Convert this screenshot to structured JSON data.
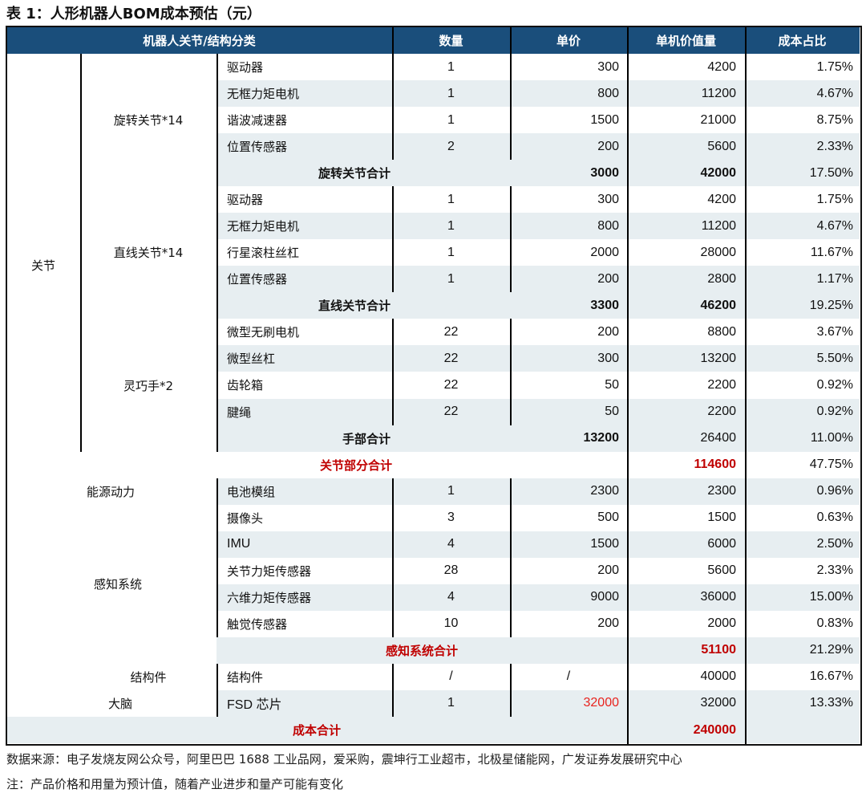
{
  "title": "表 1：人形机器人BOM成本预估（元）",
  "header": {
    "category": "机器人关节/结构分类",
    "qty": "数量",
    "price": "单价",
    "total": "单机价值量",
    "pct": "成本占比"
  },
  "groups": {
    "level1": [
      {
        "label": "关节"
      }
    ],
    "level2": [
      {
        "label": "旋转关节*14"
      },
      {
        "label": "直线关节*14"
      },
      {
        "label": "灵巧手*2"
      },
      {
        "label": "能源动力"
      },
      {
        "label": "感知系统"
      },
      {
        "label": "结构件"
      },
      {
        "label": "大脑"
      }
    ]
  },
  "rows": [
    {
      "type": "item",
      "item": "驱动器",
      "qty": "1",
      "price": "300",
      "total": "4200",
      "pct": "1.75%"
    },
    {
      "type": "item",
      "item": "无框力矩电机",
      "qty": "1",
      "price": "800",
      "total": "11200",
      "pct": "4.67%"
    },
    {
      "type": "item",
      "item": "谐波减速器",
      "qty": "1",
      "price": "1500",
      "total": "21000",
      "pct": "8.75%"
    },
    {
      "type": "item",
      "item": "位置传感器",
      "qty": "2",
      "price": "200",
      "total": "5600",
      "pct": "2.33%"
    },
    {
      "type": "subtotal",
      "item": "旋转关节合计",
      "price": "3000",
      "total": "42000",
      "pct": "17.50%"
    },
    {
      "type": "item",
      "item": "驱动器",
      "qty": "1",
      "price": "300",
      "total": "4200",
      "pct": "1.75%"
    },
    {
      "type": "item",
      "item": "无框力矩电机",
      "qty": "1",
      "price": "800",
      "total": "11200",
      "pct": "4.67%"
    },
    {
      "type": "item",
      "item": "行星滚柱丝杠",
      "qty": "1",
      "price": "2000",
      "total": "28000",
      "pct": "11.67%"
    },
    {
      "type": "item",
      "item": "位置传感器",
      "qty": "1",
      "price": "200",
      "total": "2800",
      "pct": "1.17%"
    },
    {
      "type": "subtotal",
      "item": "直线关节合计",
      "price": "3300",
      "total": "46200",
      "pct": "19.25%"
    },
    {
      "type": "item",
      "item": "微型无刷电机",
      "qty": "22",
      "price": "200",
      "total": "8800",
      "pct": "3.67%"
    },
    {
      "type": "item",
      "item": "微型丝杠",
      "qty": "22",
      "price": "300",
      "total": "13200",
      "pct": "5.50%"
    },
    {
      "type": "item",
      "item": "齿轮箱",
      "qty": "22",
      "price": "50",
      "total": "2200",
      "pct": "0.92%"
    },
    {
      "type": "item",
      "item": "腱绳",
      "qty": "22",
      "price": "50",
      "total": "2200",
      "pct": "0.92%"
    },
    {
      "type": "subtotal-hand",
      "item": "手部合计",
      "price": "13200",
      "total": "26400",
      "pct": "11.00%"
    },
    {
      "type": "joint-total",
      "item": "关节部分合计",
      "total": "114600",
      "pct": "47.75%"
    },
    {
      "type": "item",
      "item": "电池模组",
      "qty": "1",
      "price": "2300",
      "total": "2300",
      "pct": "0.96%"
    },
    {
      "type": "item",
      "item": "摄像头",
      "qty": "3",
      "price": "500",
      "total": "1500",
      "pct": "0.63%"
    },
    {
      "type": "item",
      "item": "IMU",
      "qty": "4",
      "price": "1500",
      "total": "6000",
      "pct": "2.50%"
    },
    {
      "type": "item",
      "item": "关节力矩传感器",
      "qty": "28",
      "price": "200",
      "total": "5600",
      "pct": "2.33%"
    },
    {
      "type": "item",
      "item": "六维力矩传感器",
      "qty": "4",
      "price": "9000",
      "total": "36000",
      "pct": "15.00%"
    },
    {
      "type": "item",
      "item": "触觉传感器",
      "qty": "10",
      "price": "200",
      "total": "2000",
      "pct": "0.83%"
    },
    {
      "type": "sense-total",
      "item": "感知系统合计",
      "total": "51100",
      "pct": "21.29%"
    },
    {
      "type": "item",
      "item": "结构件",
      "qty": "/",
      "price": "/",
      "total": "40000",
      "pct": "16.67%"
    },
    {
      "type": "item",
      "item": "FSD 芯片",
      "qty": "1",
      "price": "32000",
      "price_highlight": true,
      "total": "32000",
      "pct": "13.33%"
    },
    {
      "type": "grand-total",
      "item": "成本合计",
      "total": "240000",
      "pct": ""
    }
  ],
  "colors": {
    "header_bg": "#1a4e7b",
    "shade": "#e7eef1",
    "total_red": "#c00000"
  },
  "notes": {
    "source": "数据来源：电子发烧友网公众号，阿里巴巴 1688 工业品网，爱采购，震坤行工业超市，北极星储能网，广发证券发展研究中心",
    "note": "注：产品价格和用量为预计值，随着产业进步和量产可能有变化"
  }
}
